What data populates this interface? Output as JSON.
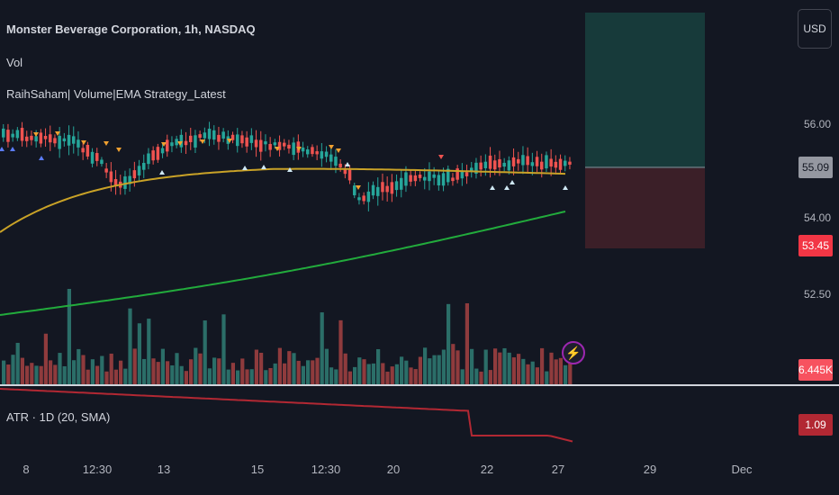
{
  "header": {
    "symbol_line": "Monster Beverage Corporation, 1h, NASDAQ",
    "volume_label": "Vol",
    "strategy_label": "RaihSaham| Volume|EMA Strategy_Latest"
  },
  "currency_button": "USD",
  "price_axis": {
    "ticks": [
      "56.00",
      "54.00",
      "52.50"
    ],
    "last_price": "55.09",
    "stop_price": "53.45",
    "volume_value": "6.445K",
    "atr_value": "1.09"
  },
  "atr_pane": {
    "label": "ATR · 1D (20, SMA)"
  },
  "time_axis": {
    "ticks": [
      "8",
      "12:30",
      "13",
      "15",
      "12:30",
      "20",
      "22",
      "27",
      "29",
      "Dec"
    ]
  },
  "colors": {
    "background": "#131722",
    "bull": "#26a69a",
    "bear": "#ef5350",
    "ema_fast": "#c9a227",
    "ema_slow": "#22ab3c",
    "atr_line": "#b22833",
    "target_zone": "#173a3a",
    "stop_zone": "#3b1f28"
  },
  "icons": {
    "alert": "lightning-bolt-icon"
  }
}
